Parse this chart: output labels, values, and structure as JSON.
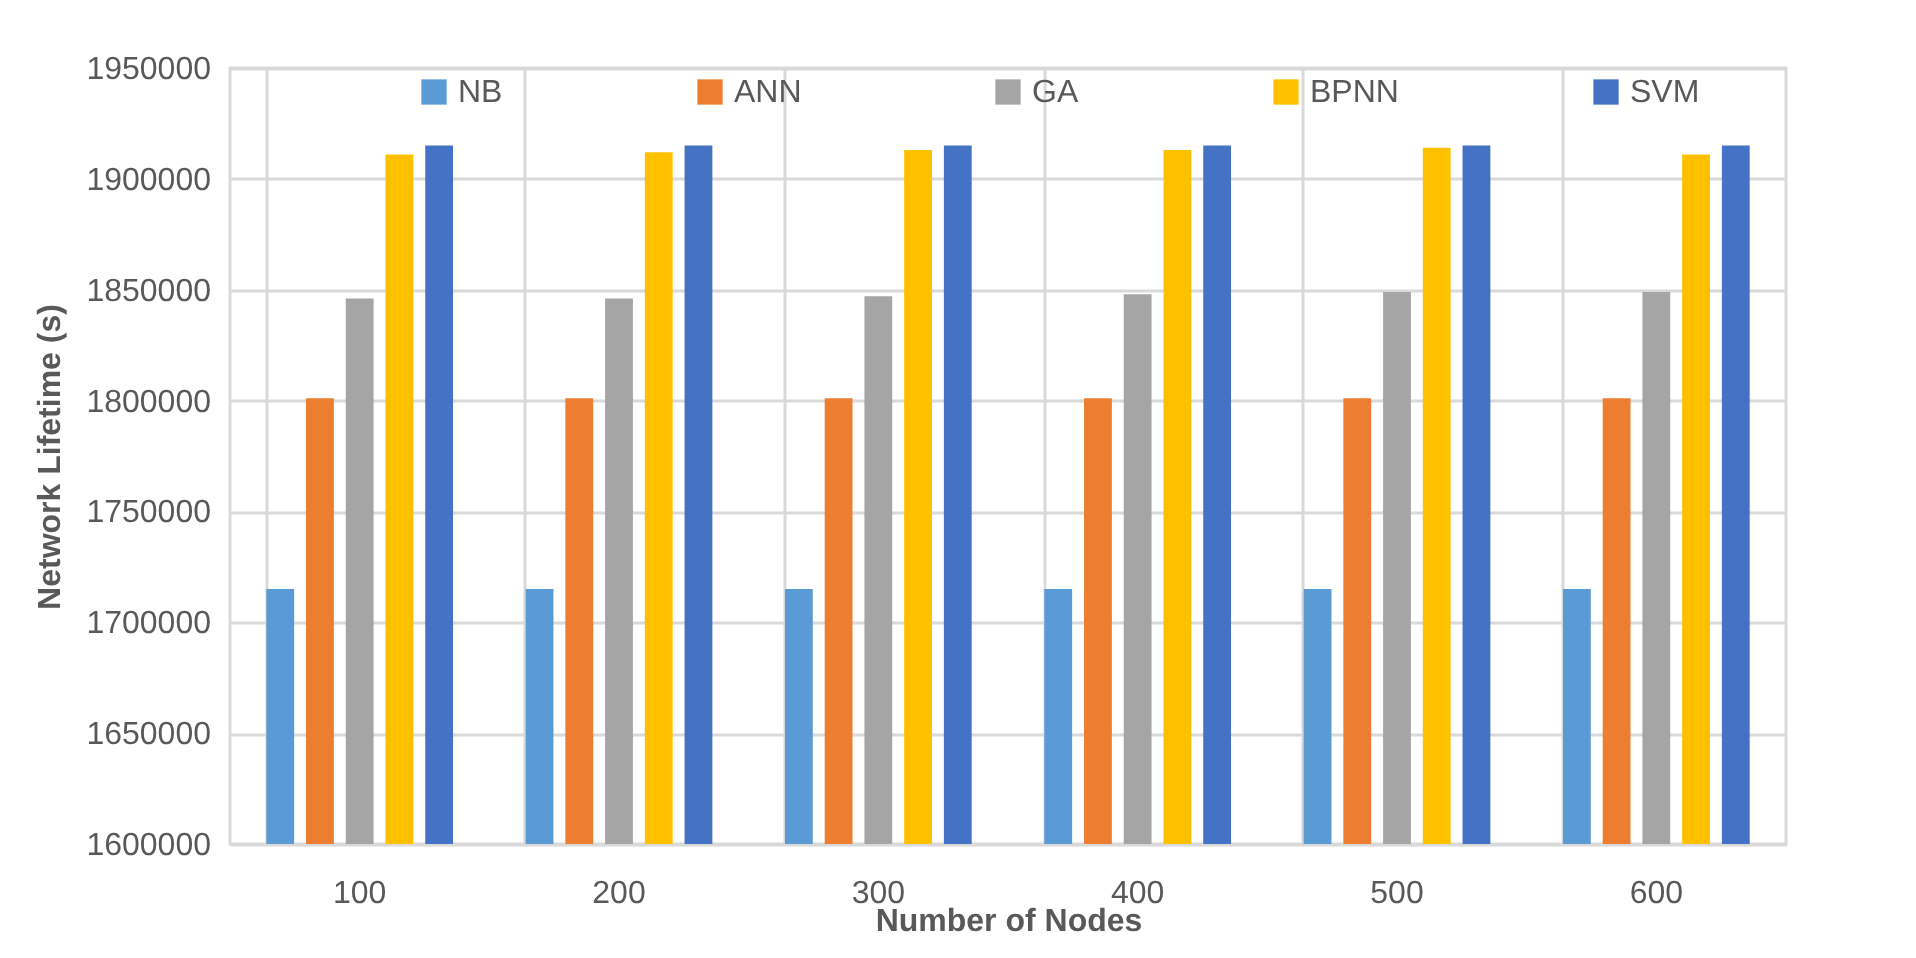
{
  "chart_data": {
    "type": "bar",
    "xlabel": "Number of Nodes",
    "ylabel": "Network Lifetime (s)",
    "categories": [
      "100",
      "200",
      "300",
      "400",
      "500",
      "600"
    ],
    "series": [
      {
        "name": "NB",
        "color": "#5b9bd5",
        "values": [
          1715000,
          1715000,
          1715000,
          1715000,
          1715000,
          1715000
        ]
      },
      {
        "name": "ANN",
        "color": "#ed7d31",
        "values": [
          1801000,
          1801000,
          1801000,
          1801000,
          1801000,
          1801000
        ]
      },
      {
        "name": "GA",
        "color": "#a5a5a5",
        "values": [
          1846000,
          1846000,
          1847000,
          1848000,
          1849000,
          1849000
        ]
      },
      {
        "name": "BPNN",
        "color": "#ffc000",
        "values": [
          1911000,
          1912000,
          1913000,
          1913000,
          1914000,
          1911000
        ]
      },
      {
        "name": "SVM",
        "color": "#4472c4",
        "values": [
          1915000,
          1915000,
          1915000,
          1915000,
          1915000,
          1915000
        ]
      }
    ],
    "ylim": [
      1600000,
      1950000
    ],
    "yticks": [
      1600000,
      1650000,
      1700000,
      1750000,
      1800000,
      1850000,
      1900000,
      1950000
    ],
    "grid": true,
    "legend": "top"
  }
}
